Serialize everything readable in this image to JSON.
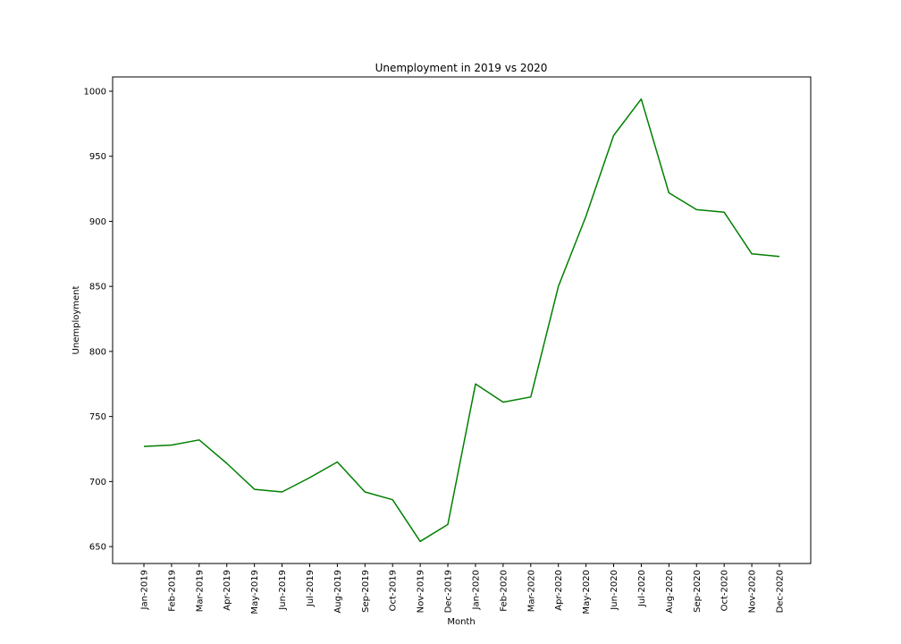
{
  "chart_data": {
    "type": "line",
    "title": "Unemployment in 2019 vs 2020",
    "xlabel": "Month",
    "ylabel": "Unemployment",
    "categories": [
      "Jan-2019",
      "Feb-2019",
      "Mar-2019",
      "Apr-2019",
      "May-2019",
      "Jun-2019",
      "Jul-2019",
      "Aug-2019",
      "Sep-2019",
      "Oct-2019",
      "Nov-2019",
      "Dec-2019",
      "Jan-2020",
      "Feb-2020",
      "Mar-2020",
      "Apr-2020",
      "May-2020",
      "Jun-2020",
      "Jul-2020",
      "Aug-2020",
      "Sep-2020",
      "Oct-2020",
      "Nov-2020",
      "Dec-2020"
    ],
    "series": [
      {
        "values": [
          727,
          728,
          732,
          714,
          694,
          692,
          703,
          715,
          692,
          686,
          654,
          667,
          775,
          761,
          765,
          850,
          904,
          966,
          994,
          922,
          909,
          907,
          875,
          873
        ],
        "color": "#008000"
      }
    ],
    "ylim": [
      637,
      1011
    ],
    "yticks": [
      650,
      700,
      750,
      800,
      850,
      900,
      950,
      1000
    ],
    "grid": false,
    "legend": "none"
  }
}
